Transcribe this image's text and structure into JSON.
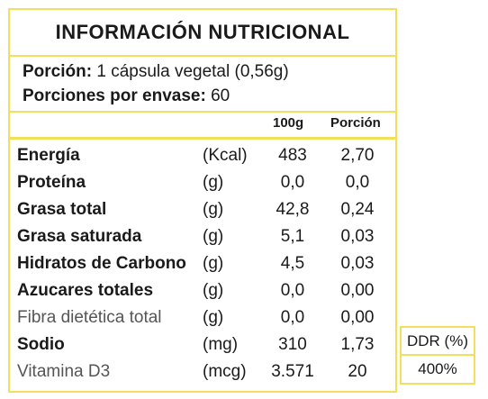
{
  "title": "INFORMACIÓN  NUTRICIONAL",
  "serving": {
    "portion_label": "Porción:",
    "portion_value": "1 cápsula vegetal (0,56g)",
    "per_container_label": "Porciones por envase:",
    "per_container_value": "60"
  },
  "columns": {
    "per100": "100g",
    "per_portion": "Porción"
  },
  "rows": [
    {
      "name": "Energía",
      "unit": "(Kcal)",
      "per100": "483",
      "portion": "2,70"
    },
    {
      "name": "Proteína",
      "unit": "(g)",
      "per100": "0,0",
      "portion": "0,0"
    },
    {
      "name": "Grasa total",
      "unit": "(g)",
      "per100": "42,8",
      "portion": "0,24"
    },
    {
      "name": "Grasa saturada",
      "unit": "(g)",
      "per100": "5,1",
      "portion": "0,03"
    },
    {
      "name": "Hidratos de Carbono",
      "unit": "(g)",
      "per100": "4,5",
      "portion": "0,03"
    },
    {
      "name": "Azucares totales",
      "unit": "(g)",
      "per100": "0,0",
      "portion": "0,00"
    },
    {
      "name": "Fibra dietética total",
      "unit": "(g)",
      "per100": "0,0",
      "portion": "0,00"
    },
    {
      "name": "Sodio",
      "unit": "(mg)",
      "per100": "310",
      "portion": "1,73"
    },
    {
      "name": "Vitamina D3",
      "unit": "(mcg)",
      "per100": "3.571",
      "portion": "20"
    }
  ],
  "ddr": {
    "header": "DDR (%)",
    "value": "400%"
  },
  "colors": {
    "border": "#f2df5c"
  }
}
